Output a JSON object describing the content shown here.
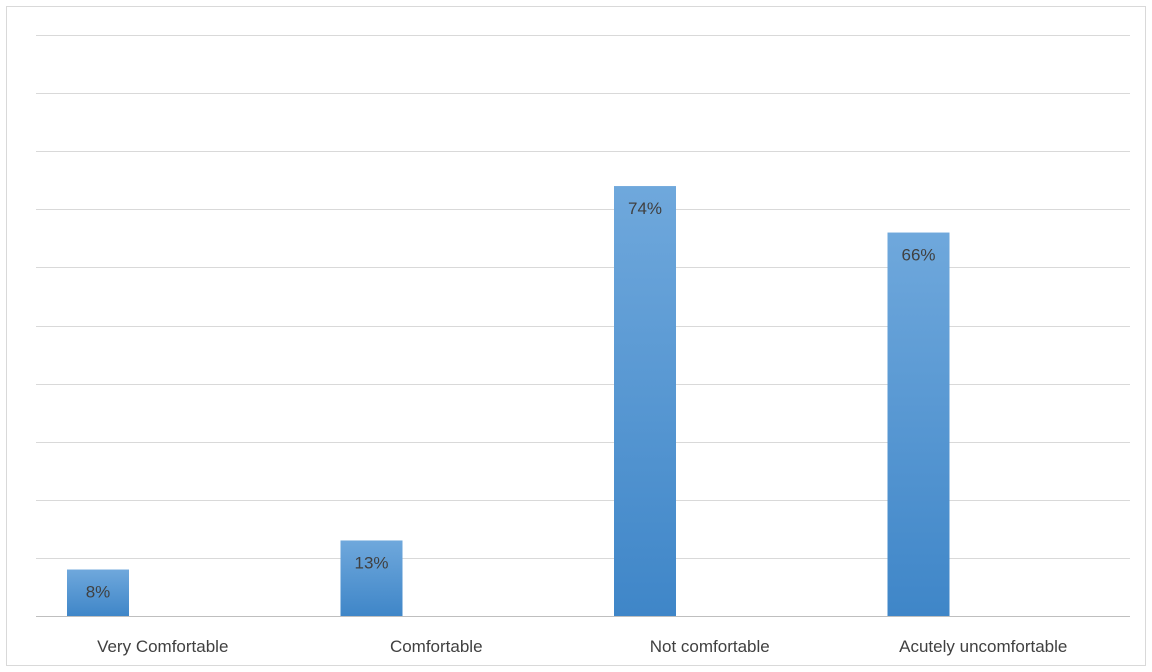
{
  "chart_data": {
    "type": "bar",
    "categories": [
      "Very Comfortable",
      "Comfortable",
      "Not comfortable",
      "Acutely uncomfortable"
    ],
    "values": [
      8,
      13,
      74,
      66
    ],
    "value_format": "percent",
    "ylim": [
      0,
      100
    ],
    "gridline_step": 10,
    "grid": true,
    "legend": "none",
    "colors": {
      "bar_top": "#6fa8dc",
      "bar_bottom": "#3f86c8",
      "gridline": "#d9d9d9",
      "label": "#404040"
    }
  }
}
